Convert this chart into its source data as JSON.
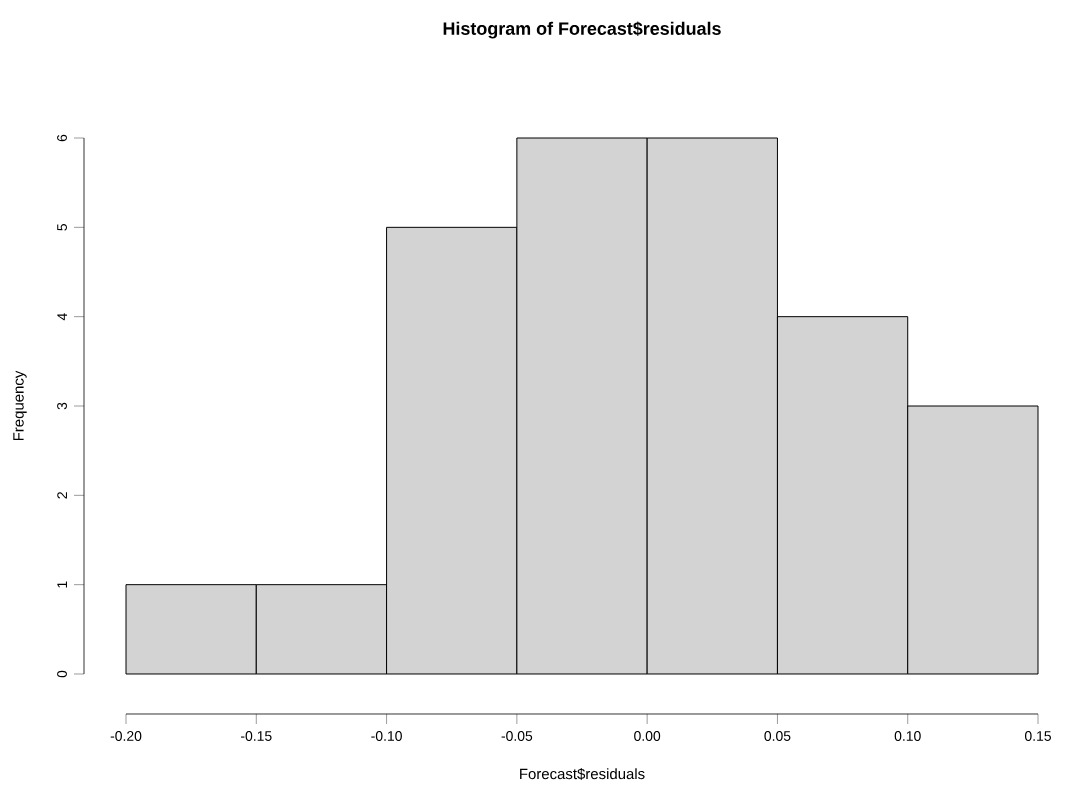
{
  "chart_data": {
    "type": "histogram",
    "title": "Histogram of Forecast$residuals",
    "xlabel": "Forecast$residuals",
    "ylabel": "Frequency",
    "bins": [
      -0.2,
      -0.15,
      -0.1,
      -0.05,
      0.0,
      0.05,
      0.1,
      0.15
    ],
    "values": [
      1,
      1,
      5,
      6,
      6,
      4,
      3
    ],
    "color": "#d3d3d3",
    "xlim": [
      -0.2,
      0.15
    ],
    "xticks": [
      {
        "value": -0.2,
        "label": "-0.20"
      },
      {
        "value": -0.15,
        "label": "-0.15"
      },
      {
        "value": -0.1,
        "label": "-0.10"
      },
      {
        "value": -0.05,
        "label": "-0.05"
      },
      {
        "value": 0.0,
        "label": "0.00"
      },
      {
        "value": 0.05,
        "label": "0.05"
      },
      {
        "value": 0.1,
        "label": "0.10"
      },
      {
        "value": 0.15,
        "label": "0.15"
      }
    ],
    "ylim": [
      0,
      6
    ],
    "yticks": [
      0,
      1,
      2,
      3,
      4,
      5,
      6
    ]
  }
}
